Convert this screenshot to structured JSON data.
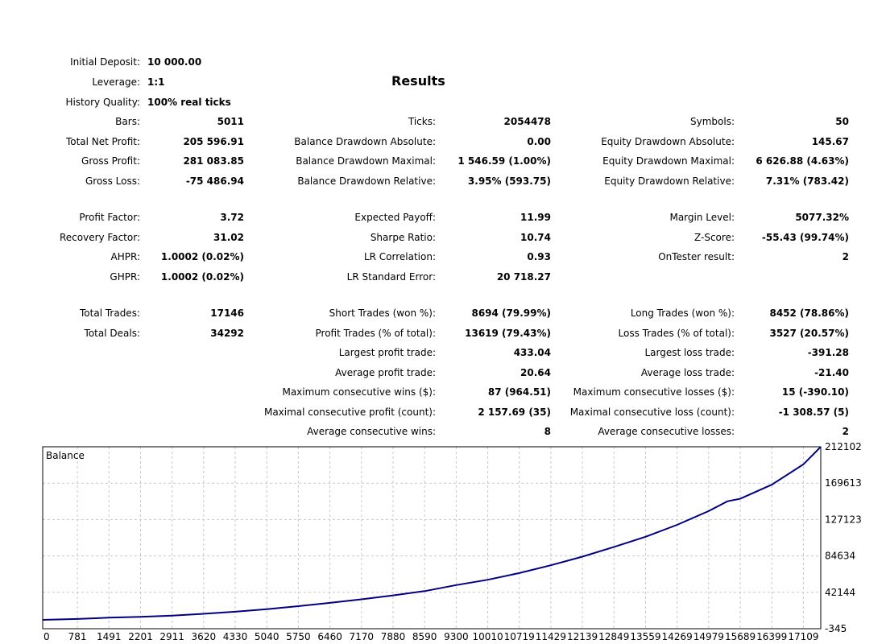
{
  "report": {
    "title": "Results",
    "col1": [
      {
        "label": "Initial Deposit:",
        "value": "10 000.00",
        "align": "left"
      },
      {
        "label": "Leverage:",
        "value": "1:1",
        "align": "left"
      },
      {
        "label": "History Quality:",
        "value": "100% real ticks",
        "align": "left"
      },
      {
        "label": "Bars:",
        "value": "5011"
      },
      {
        "label": "Total Net Profit:",
        "value": "205 596.91"
      },
      {
        "label": "Gross Profit:",
        "value": "281 083.85"
      },
      {
        "label": "Gross Loss:",
        "value": "-75 486.94"
      },
      {
        "label": "Profit Factor:",
        "value": "3.72"
      },
      {
        "label": "Recovery Factor:",
        "value": "31.02"
      },
      {
        "label": "AHPR:",
        "value": "1.0002 (0.02%)"
      },
      {
        "label": "GHPR:",
        "value": "1.0002 (0.02%)"
      },
      {
        "label": "Total Trades:",
        "value": "17146"
      },
      {
        "label": "Total Deals:",
        "value": "34292"
      }
    ],
    "col2": [
      {
        "label": "Ticks:",
        "value": "2054478"
      },
      {
        "label": "Balance Drawdown Absolute:",
        "value": "0.00"
      },
      {
        "label": "Balance Drawdown Maximal:",
        "value": "1 546.59 (1.00%)"
      },
      {
        "label": "Balance Drawdown Relative:",
        "value": "3.95% (593.75)"
      },
      {
        "label": "Expected Payoff:",
        "value": "11.99"
      },
      {
        "label": "Sharpe Ratio:",
        "value": "10.74"
      },
      {
        "label": "LR Correlation:",
        "value": "0.93"
      },
      {
        "label": "LR Standard Error:",
        "value": "20 718.27"
      },
      {
        "label": "Short Trades (won %):",
        "value": "8694 (79.99%)"
      },
      {
        "label": "Profit Trades (% of total):",
        "value": "13619 (79.43%)"
      },
      {
        "label": "Largest profit trade:",
        "value": "433.04"
      },
      {
        "label": "Average profit trade:",
        "value": "20.64"
      },
      {
        "label": "Maximum consecutive wins ($):",
        "value": "87 (964.51)"
      },
      {
        "label": "Maximal consecutive profit (count):",
        "value": "2 157.69 (35)"
      },
      {
        "label": "Average consecutive wins:",
        "value": "8"
      }
    ],
    "col3": [
      {
        "label": "Symbols:",
        "value": "50"
      },
      {
        "label": "Equity Drawdown Absolute:",
        "value": "145.67"
      },
      {
        "label": "Equity Drawdown Maximal:",
        "value": "6 626.88 (4.63%)"
      },
      {
        "label": "Equity Drawdown Relative:",
        "value": "7.31% (783.42)"
      },
      {
        "label": "Margin Level:",
        "value": "5077.32%"
      },
      {
        "label": "Z-Score:",
        "value": "-55.43 (99.74%)"
      },
      {
        "label": "OnTester result:",
        "value": "2"
      },
      {
        "label": "Long Trades (won %):",
        "value": "8452 (78.86%)"
      },
      {
        "label": "Loss Trades (% of total):",
        "value": "3527 (20.57%)"
      },
      {
        "label": "Largest loss trade:",
        "value": "-391.28"
      },
      {
        "label": "Average loss trade:",
        "value": "-21.40"
      },
      {
        "label": "Maximum consecutive losses ($):",
        "value": "15 (-390.10)"
      },
      {
        "label": "Maximal consecutive loss (count):",
        "value": "-1 308.57 (5)"
      },
      {
        "label": "Average consecutive losses:",
        "value": "2"
      }
    ]
  },
  "chart_data": {
    "type": "line",
    "series": [
      {
        "name": "Balance"
      }
    ],
    "ylim": [
      -345,
      212102
    ],
    "xlim": [
      0,
      17500
    ],
    "yticks": [
      "212102",
      "169613",
      "127123",
      "84634",
      "42144",
      "-345"
    ],
    "yticks_values": [
      212102,
      169613,
      127123,
      84634,
      42144,
      -345
    ],
    "xticks": [
      "0",
      "781",
      "1491",
      "2201",
      "2911",
      "3620",
      "4330",
      "5040",
      "5750",
      "6460",
      "7170",
      "7880",
      "8590",
      "9300",
      "10010",
      "10719",
      "11429",
      "12139",
      "12849",
      "13559",
      "14269",
      "14979",
      "15689",
      "16399",
      "17109"
    ],
    "x": [
      0,
      781,
      1491,
      2201,
      2911,
      3620,
      4330,
      5040,
      5750,
      6460,
      7170,
      7880,
      8590,
      9300,
      10010,
      10719,
      11429,
      12139,
      12849,
      13559,
      14269,
      14979,
      15400,
      15689,
      16399,
      17109,
      17500
    ],
    "values": [
      10000,
      11000,
      12500,
      13500,
      15000,
      17000,
      19500,
      22500,
      26000,
      29800,
      34000,
      38600,
      43600,
      50600,
      56800,
      64600,
      73700,
      83800,
      95200,
      107000,
      120900,
      137000,
      148500,
      151400,
      167800,
      191500,
      212102
    ],
    "grid": true,
    "line_color": "#000080"
  }
}
